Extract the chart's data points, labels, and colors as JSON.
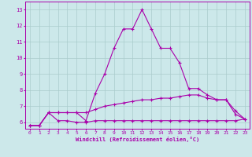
{
  "xlabel": "Windchill (Refroidissement éolien,°C)",
  "background_color": "#cce8ea",
  "grid_color": "#aacccc",
  "line_color": "#aa00aa",
  "x_ticks": [
    0,
    1,
    2,
    3,
    4,
    5,
    6,
    7,
    8,
    9,
    10,
    11,
    12,
    13,
    14,
    15,
    16,
    17,
    18,
    19,
    20,
    21,
    22,
    23
  ],
  "y_ticks": [
    6,
    7,
    8,
    9,
    10,
    11,
    12,
    13
  ],
  "xlim": [
    -0.5,
    23.5
  ],
  "ylim": [
    5.6,
    13.5
  ],
  "line1_x": [
    0,
    1,
    2,
    3,
    4,
    5,
    6,
    7,
    8,
    9,
    10,
    11,
    12,
    13,
    14,
    15,
    16,
    17,
    18,
    19,
    20,
    21,
    22,
    23
  ],
  "line1_y": [
    5.8,
    5.8,
    6.6,
    6.1,
    6.1,
    6.0,
    6.0,
    6.1,
    6.1,
    6.1,
    6.1,
    6.1,
    6.1,
    6.1,
    6.1,
    6.1,
    6.1,
    6.1,
    6.1,
    6.1,
    6.1,
    6.1,
    6.1,
    6.2
  ],
  "line2_x": [
    0,
    1,
    2,
    3,
    4,
    5,
    6,
    7,
    8,
    9,
    10,
    11,
    12,
    13,
    14,
    15,
    16,
    17,
    18,
    19,
    20,
    21,
    22,
    23
  ],
  "line2_y": [
    5.8,
    5.8,
    6.6,
    6.6,
    6.6,
    6.6,
    6.6,
    6.8,
    7.0,
    7.1,
    7.2,
    7.3,
    7.4,
    7.4,
    7.5,
    7.5,
    7.6,
    7.7,
    7.7,
    7.5,
    7.4,
    7.4,
    6.5,
    6.2
  ],
  "line3_x": [
    0,
    1,
    2,
    3,
    4,
    5,
    6,
    7,
    8,
    9,
    10,
    11,
    12,
    13,
    14,
    15,
    16,
    17,
    18,
    19,
    20,
    21,
    22,
    23
  ],
  "line3_y": [
    5.8,
    5.8,
    6.6,
    6.6,
    6.6,
    6.6,
    6.1,
    7.8,
    9.0,
    10.6,
    11.8,
    11.8,
    13.0,
    11.8,
    10.6,
    10.6,
    9.7,
    8.1,
    8.1,
    7.7,
    7.4,
    7.4,
    6.7,
    6.2
  ]
}
